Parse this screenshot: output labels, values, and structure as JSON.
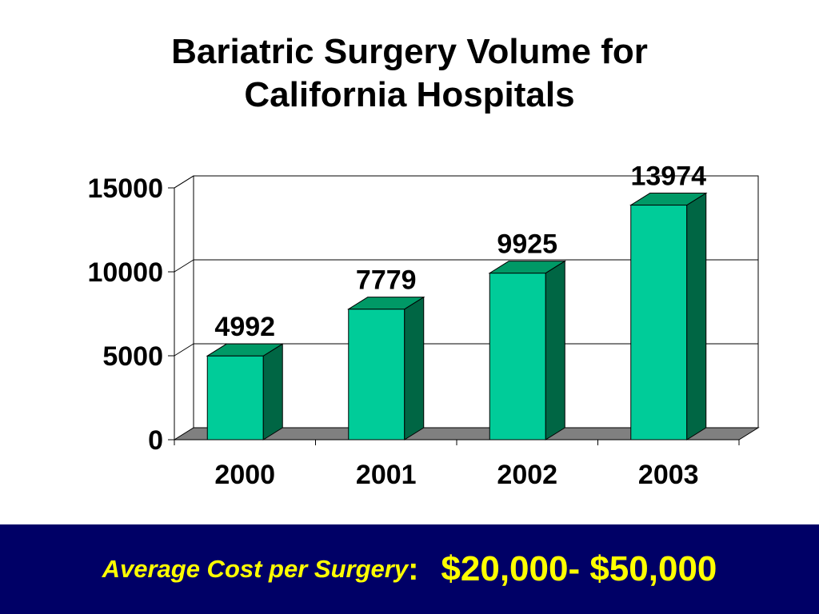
{
  "chart_data": {
    "type": "bar",
    "title": [
      "Bariatric Surgery Volume for",
      "California Hospitals"
    ],
    "xlabel": "",
    "ylabel": "",
    "categories": [
      "2000",
      "2001",
      "2002",
      "2003"
    ],
    "values": [
      4992,
      7779,
      9925,
      13974
    ],
    "data_labels": [
      "4992",
      "7779",
      "9925",
      "13974"
    ],
    "y_ticks": [
      0,
      5000,
      10000,
      15000
    ],
    "ylim": [
      0,
      15000
    ],
    "grid": true,
    "legend": "none",
    "three_d": true,
    "colors": {
      "bar_front": "#00CC99",
      "bar_top": "#009966",
      "bar_side": "#006644",
      "floor": "#808080",
      "grid": "#000000"
    }
  },
  "footer": {
    "label": "Average Cost per Surgery",
    "colon": ":",
    "value": "$20,000- $50,000",
    "background": "#000066",
    "text_color": "#FFFF00"
  }
}
